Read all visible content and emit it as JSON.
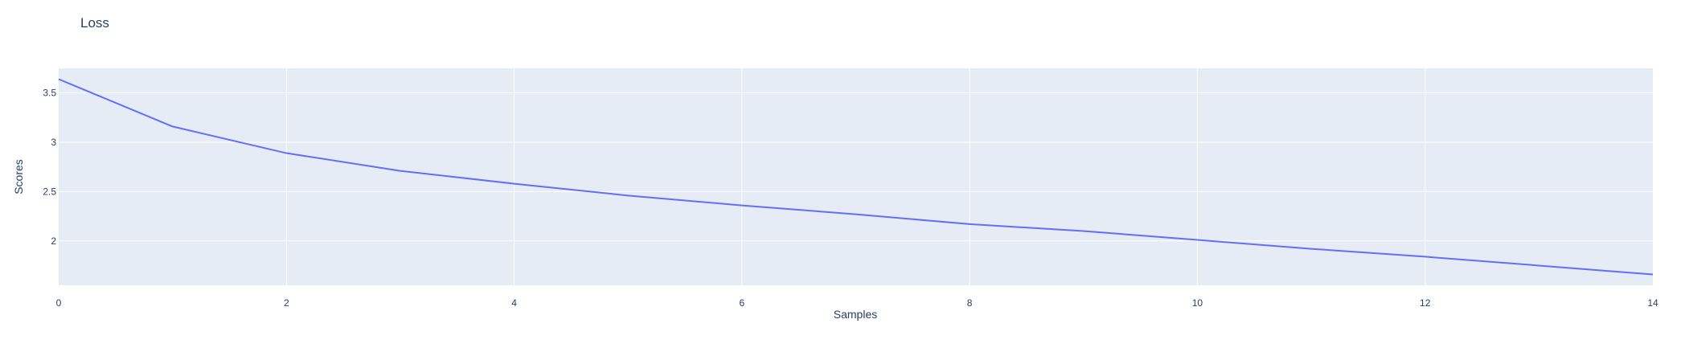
{
  "chart_data": {
    "type": "line",
    "title": "Loss",
    "xlabel": "Samples",
    "ylabel": "Scores",
    "xlim": [
      0,
      14
    ],
    "ylim": [
      1.55,
      3.75
    ],
    "xticks": [
      0,
      2,
      4,
      6,
      8,
      10,
      12,
      14
    ],
    "xtick_labels": [
      "0",
      "2",
      "4",
      "6",
      "8",
      "10",
      "12",
      "14"
    ],
    "yticks": [
      2,
      2.5,
      3,
      3.5
    ],
    "ytick_labels": [
      "2",
      "2.5",
      "3",
      "3.5"
    ],
    "grid": true,
    "legend": "none",
    "colors": {
      "plot_bg": "#e5ecf6",
      "line": "#636efa",
      "text": "#2a3f5f"
    },
    "series": [
      {
        "x": [
          0,
          1,
          2,
          3,
          4,
          5,
          6,
          7,
          8,
          9,
          10,
          11,
          12,
          13,
          14
        ],
        "values": [
          3.64,
          3.16,
          2.89,
          2.71,
          2.58,
          2.46,
          2.36,
          2.27,
          2.17,
          2.1,
          2.01,
          1.92,
          1.84,
          1.75,
          1.66
        ]
      }
    ]
  }
}
